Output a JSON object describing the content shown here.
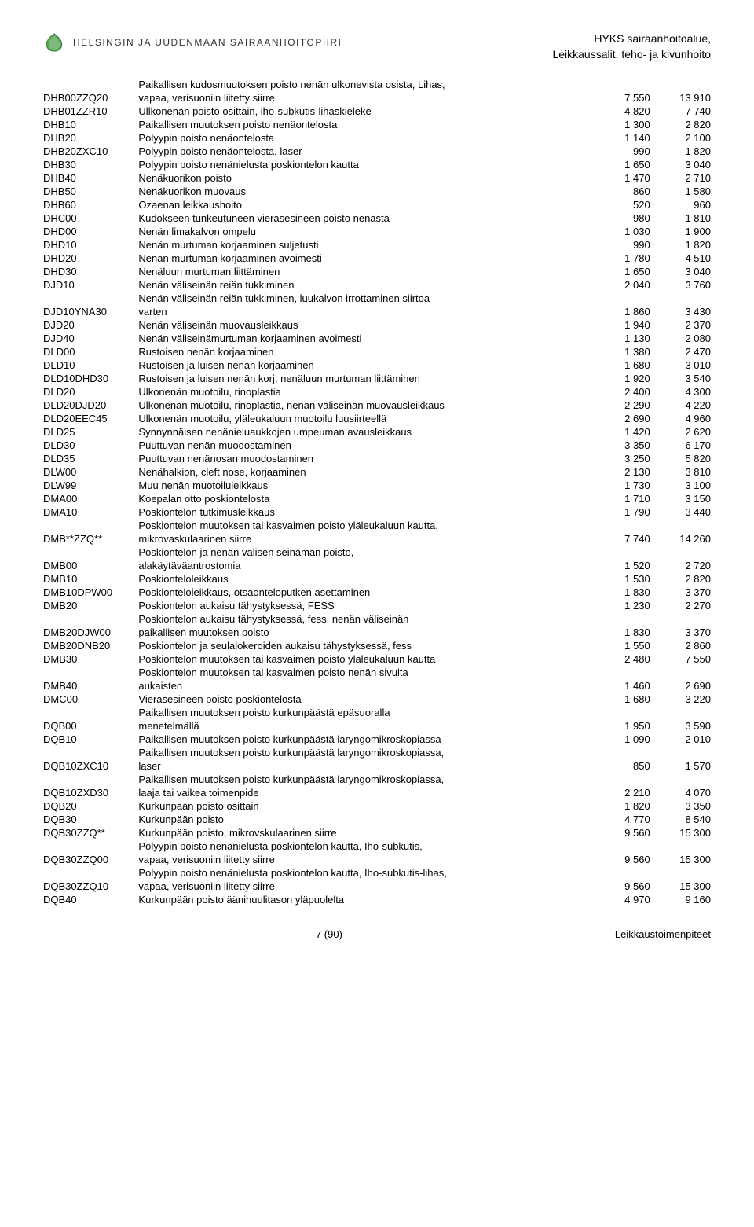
{
  "header": {
    "org_name": "HELSINGIN JA UUDENMAAN SAIRAANHOITOPIIRI",
    "right_line1": "HYKS sairaanhoitoalue,",
    "right_line2": "Leikkaussalit, teho- ja kivunhoito"
  },
  "footer": {
    "page_label": "7 (90)",
    "right_text": "Leikkaustoimenpiteet"
  },
  "colors": {
    "text": "#000000",
    "logo_fill": "#4da04d",
    "logo_stroke": "#2e7a2e"
  },
  "rows": [
    {
      "code": "",
      "desc": "Paikallisen kudosmuutoksen poisto nenän ulkonevista osista, Lihas,",
      "v1": "",
      "v2": ""
    },
    {
      "code": "DHB00ZZQ20",
      "desc": "vapaa, verisuoniin liitetty siirre",
      "v1": "7 550",
      "v2": "13 910"
    },
    {
      "code": "DHB01ZZR10",
      "desc": "Ullkonenän poisto osittain, iho-subkutis-lihaskieleke",
      "v1": "4 820",
      "v2": "7 740"
    },
    {
      "code": "DHB10",
      "desc": "Paikallisen muutoksen poisto nenäontelosta",
      "v1": "1 300",
      "v2": "2 820"
    },
    {
      "code": "DHB20",
      "desc": "Polyypin poisto nenäontelosta",
      "v1": "1 140",
      "v2": "2 100"
    },
    {
      "code": "DHB20ZXC10",
      "desc": "Polyypin poisto nenäontelosta, laser",
      "v1": "990",
      "v2": "1 820"
    },
    {
      "code": "DHB30",
      "desc": "Polyypin poisto nenänielusta poskiontelon kautta",
      "v1": "1 650",
      "v2": "3 040"
    },
    {
      "code": "DHB40",
      "desc": "Nenäkuorikon poisto",
      "v1": "1 470",
      "v2": "2 710"
    },
    {
      "code": "DHB50",
      "desc": "Nenäkuorikon muovaus",
      "v1": "860",
      "v2": "1 580"
    },
    {
      "code": "DHB60",
      "desc": "Ozaenan leikkaushoito",
      "v1": "520",
      "v2": "960"
    },
    {
      "code": "DHC00",
      "desc": "Kudokseen tunkeutuneen vierasesineen poisto nenästä",
      "v1": "980",
      "v2": "1 810"
    },
    {
      "code": "DHD00",
      "desc": "Nenän limakalvon ompelu",
      "v1": "1 030",
      "v2": "1 900"
    },
    {
      "code": "DHD10",
      "desc": "Nenän murtuman korjaaminen suljetusti",
      "v1": "990",
      "v2": "1 820"
    },
    {
      "code": "DHD20",
      "desc": "Nenän murtuman korjaaminen avoimesti",
      "v1": "1 780",
      "v2": "4 510"
    },
    {
      "code": "DHD30",
      "desc": "Nenäluun murtuman liittäminen",
      "v1": "1 650",
      "v2": "3 040"
    },
    {
      "code": "DJD10",
      "desc": "Nenän väliseinän reiän tukkiminen",
      "v1": "2 040",
      "v2": "3 760"
    },
    {
      "code": "",
      "desc": "Nenän väliseinän reiän tukkiminen, luukalvon irrottaminen siirtoa",
      "v1": "",
      "v2": ""
    },
    {
      "code": "DJD10YNA30",
      "desc": "varten",
      "v1": "1 860",
      "v2": "3 430"
    },
    {
      "code": "DJD20",
      "desc": "Nenän väliseinän muovausleikkaus",
      "v1": "1 940",
      "v2": "2 370"
    },
    {
      "code": "DJD40",
      "desc": "Nenän väliseinämurtuman korjaaminen avoimesti",
      "v1": "1 130",
      "v2": "2 080"
    },
    {
      "code": "DLD00",
      "desc": "Rustoisen nenän korjaaminen",
      "v1": "1 380",
      "v2": "2 470"
    },
    {
      "code": "DLD10",
      "desc": "Rustoisen ja luisen nenän korjaaminen",
      "v1": "1 680",
      "v2": "3 010"
    },
    {
      "code": "DLD10DHD30",
      "desc": "Rustoisen ja luisen nenän korj, nenäluun murtuman liittäminen",
      "v1": "1 920",
      "v2": "3 540"
    },
    {
      "code": "DLD20",
      "desc": "Ulkonenän muotoilu, rinoplastia",
      "v1": "2 400",
      "v2": "4 300"
    },
    {
      "code": "DLD20DJD20",
      "desc": "Ulkonenän muotoilu, rinoplastia, nenän väliseinän muovausleikkaus",
      "v1": "2 290",
      "v2": "4 220"
    },
    {
      "code": "DLD20EEC45",
      "desc": "Ulkonenän muotoilu, yläleukaluun muotoilu luusiirteellä",
      "v1": "2 690",
      "v2": "4 960"
    },
    {
      "code": "DLD25",
      "desc": "Synnynnäisen nenänieluaukkojen umpeuman avausleikkaus",
      "v1": "1 420",
      "v2": "2 620"
    },
    {
      "code": "DLD30",
      "desc": "Puuttuvan nenän muodostaminen",
      "v1": "3 350",
      "v2": "6 170"
    },
    {
      "code": "DLD35",
      "desc": "Puuttuvan nenänosan muodostaminen",
      "v1": "3 250",
      "v2": "5 820"
    },
    {
      "code": "DLW00",
      "desc": "Nenähalkion, cleft nose, korjaaminen",
      "v1": "2 130",
      "v2": "3 810"
    },
    {
      "code": "DLW99",
      "desc": "Muu nenän muotoiluleikkaus",
      "v1": "1 730",
      "v2": "3 100"
    },
    {
      "code": "DMA00",
      "desc": "Koepalan otto poskiontelosta",
      "v1": "1 710",
      "v2": "3 150"
    },
    {
      "code": "DMA10",
      "desc": "Poskiontelon tutkimusleikkaus",
      "v1": "1 790",
      "v2": "3 440"
    },
    {
      "code": "",
      "desc": "Poskiontelon muutoksen tai kasvaimen poisto yläleukaluun kautta,",
      "v1": "",
      "v2": ""
    },
    {
      "code": "DMB**ZZQ**",
      "desc": "mikrovaskulaarinen siirre",
      "v1": "7 740",
      "v2": "14 260"
    },
    {
      "code": "",
      "desc": "Poskiontelon ja nenän välisen seinämän poisto,",
      "v1": "",
      "v2": ""
    },
    {
      "code": "DMB00",
      "desc": "alakäytäväantrostomia",
      "v1": "1 520",
      "v2": "2 720"
    },
    {
      "code": "DMB10",
      "desc": "Poskionteloleikkaus",
      "v1": "1 530",
      "v2": "2 820"
    },
    {
      "code": "DMB10DPW00",
      "desc": "Poskionteloleikkaus, otsaonteloputken asettaminen",
      "v1": "1 830",
      "v2": "3 370"
    },
    {
      "code": "DMB20",
      "desc": "Poskiontelon aukaisu tähystyksessä, FESS",
      "v1": "1 230",
      "v2": "2 270"
    },
    {
      "code": "",
      "desc": "Poskiontelon aukaisu tähystyksessä, fess, nenän väliseinän",
      "v1": "",
      "v2": ""
    },
    {
      "code": "DMB20DJW00",
      "desc": "paikallisen muutoksen poisto",
      "v1": "1 830",
      "v2": "3 370"
    },
    {
      "code": "DMB20DNB20",
      "desc": "Poskiontelon ja seulalokeroiden aukaisu tähystyksessä, fess",
      "v1": "1 550",
      "v2": "2 860"
    },
    {
      "code": "DMB30",
      "desc": "Poskiontelon muutoksen tai kasvaimen poisto yläleukaluun kautta",
      "v1": "2 480",
      "v2": "7 550"
    },
    {
      "code": "",
      "desc": "Poskiontelon muutoksen tai kasvaimen poisto nenän sivulta",
      "v1": "",
      "v2": ""
    },
    {
      "code": "DMB40",
      "desc": "aukaisten",
      "v1": "1 460",
      "v2": "2 690"
    },
    {
      "code": "DMC00",
      "desc": "Vierasesineen poisto poskiontelosta",
      "v1": "1 680",
      "v2": "3 220"
    },
    {
      "code": "",
      "desc": "Paikallisen muutoksen poisto kurkunpäästä epäsuoralla",
      "v1": "",
      "v2": ""
    },
    {
      "code": "DQB00",
      "desc": "menetelmällä",
      "v1": "1 950",
      "v2": "3 590"
    },
    {
      "code": "DQB10",
      "desc": "Paikallisen muutoksen poisto kurkunpäästä laryngomikroskopiassa",
      "v1": "1 090",
      "v2": "2 010"
    },
    {
      "code": "",
      "desc": "Paikallisen muutoksen poisto kurkunpäästä laryngomikroskopiassa,",
      "v1": "",
      "v2": ""
    },
    {
      "code": "DQB10ZXC10",
      "desc": "laser",
      "v1": "850",
      "v2": "1 570"
    },
    {
      "code": "",
      "desc": "Paikallisen muutoksen poisto kurkunpäästä laryngomikroskopiassa,",
      "v1": "",
      "v2": ""
    },
    {
      "code": "DQB10ZXD30",
      "desc": "laaja tai vaikea toimenpide",
      "v1": "2 210",
      "v2": "4 070"
    },
    {
      "code": "DQB20",
      "desc": "Kurkunpään poisto osittain",
      "v1": "1 820",
      "v2": "3 350"
    },
    {
      "code": "DQB30",
      "desc": "Kurkunpään poisto",
      "v1": "4 770",
      "v2": "8 540"
    },
    {
      "code": "DQB30ZZQ**",
      "desc": "Kurkunpään poisto, mikrovskulaarinen siirre",
      "v1": "9 560",
      "v2": "15 300"
    },
    {
      "code": "",
      "desc": "Polyypin poisto nenänielusta poskiontelon kautta, Iho-subkutis,",
      "v1": "",
      "v2": ""
    },
    {
      "code": "DQB30ZZQ00",
      "desc": "vapaa, verisuoniin liitetty siirre",
      "v1": "9 560",
      "v2": "15 300"
    },
    {
      "code": "",
      "desc": "Polyypin poisto nenänielusta poskiontelon kautta, Iho-subkutis-lihas,",
      "v1": "",
      "v2": ""
    },
    {
      "code": "DQB30ZZQ10",
      "desc": "vapaa, verisuoniin liitetty siirre",
      "v1": "9 560",
      "v2": "15 300"
    },
    {
      "code": "DQB40",
      "desc": "Kurkunpään poisto äänihuulitason yläpuolelta",
      "v1": "4 970",
      "v2": "9 160"
    }
  ]
}
